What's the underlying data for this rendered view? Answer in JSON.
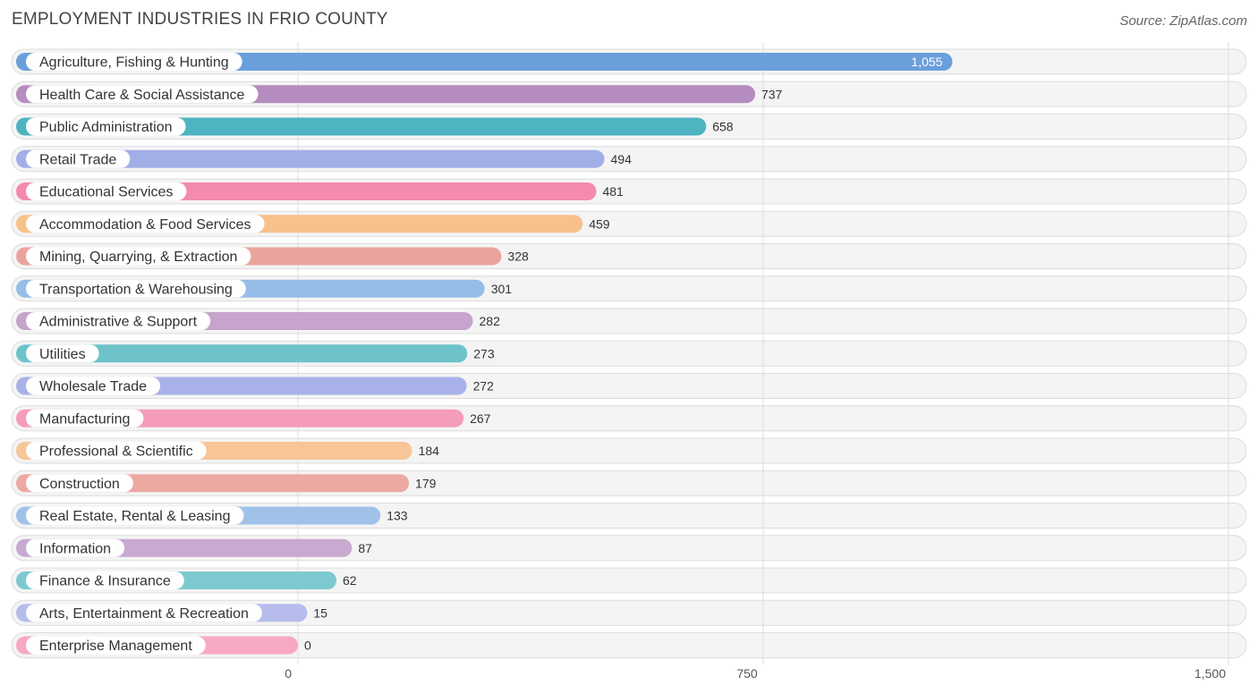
{
  "header": {
    "title": "EMPLOYMENT INDUSTRIES IN FRIO COUNTY",
    "source": "Source: ZipAtlas.com"
  },
  "chart_data": {
    "type": "bar",
    "orientation": "horizontal",
    "title": "EMPLOYMENT INDUSTRIES IN FRIO COUNTY",
    "xlabel": "",
    "ylabel": "",
    "xlim": [
      0,
      1500
    ],
    "ticks": [
      0,
      750,
      1500
    ],
    "tick_labels": [
      "0",
      "750",
      "1,500"
    ],
    "grid": true,
    "categories": [
      "Agriculture, Fishing & Hunting",
      "Health Care & Social Assistance",
      "Public Administration",
      "Retail Trade",
      "Educational Services",
      "Accommodation & Food Services",
      "Mining, Quarrying, & Extraction",
      "Transportation & Warehousing",
      "Administrative & Support",
      "Utilities",
      "Wholesale Trade",
      "Manufacturing",
      "Professional & Scientific",
      "Construction",
      "Real Estate, Rental & Leasing",
      "Information",
      "Finance & Insurance",
      "Arts, Entertainment & Recreation",
      "Enterprise Management"
    ],
    "values": [
      1055,
      737,
      658,
      494,
      481,
      459,
      328,
      301,
      282,
      273,
      272,
      267,
      184,
      179,
      133,
      87,
      62,
      15,
      0
    ],
    "value_labels": [
      "1,055",
      "737",
      "658",
      "494",
      "481",
      "459",
      "328",
      "301",
      "282",
      "273",
      "272",
      "267",
      "184",
      "179",
      "133",
      "87",
      "62",
      "15",
      "0"
    ],
    "colors": [
      "#6a9fdc",
      "#b48cbf",
      "#4db5c1",
      "#a2aee6",
      "#f48aac",
      "#f8c08a",
      "#eba39d",
      "#96bde6",
      "#c6a4cc",
      "#6ec3cb",
      "#a9b2e8",
      "#f59cb8",
      "#f8c596",
      "#eca9a2",
      "#a0c2e9",
      "#c8a9d0",
      "#7ccacf",
      "#b6bdec",
      "#f7a8c4"
    ]
  }
}
